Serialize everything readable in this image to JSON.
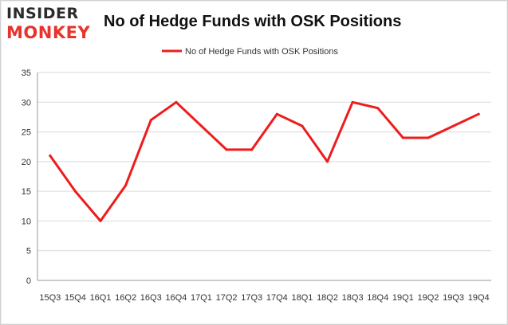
{
  "logo": {
    "line1": "INSIDER",
    "line2": "MONKEY"
  },
  "colors": {
    "series": "#ee1c1c",
    "grid": "#d9d9d9",
    "axis": "#999999"
  },
  "chart_data": {
    "type": "line",
    "title": "No of Hedge Funds with OSK Positions",
    "x": [
      "15Q3",
      "15Q4",
      "16Q1",
      "16Q2",
      "16Q3",
      "16Q4",
      "17Q1",
      "17Q2",
      "17Q3",
      "17Q4",
      "18Q1",
      "18Q2",
      "18Q3",
      "18Q4",
      "19Q1",
      "19Q2",
      "19Q3",
      "19Q4"
    ],
    "series": [
      {
        "name": "No of Hedge Funds with OSK Positions",
        "values": [
          21,
          15,
          10,
          16,
          27,
          30,
          26,
          22,
          22,
          28,
          26,
          20,
          30,
          29,
          24,
          24,
          26,
          28
        ]
      }
    ],
    "ylim": [
      0,
      35
    ],
    "yticks": [
      0,
      5,
      10,
      15,
      20,
      25,
      30,
      35
    ],
    "grid": true,
    "legend": "top-center"
  }
}
